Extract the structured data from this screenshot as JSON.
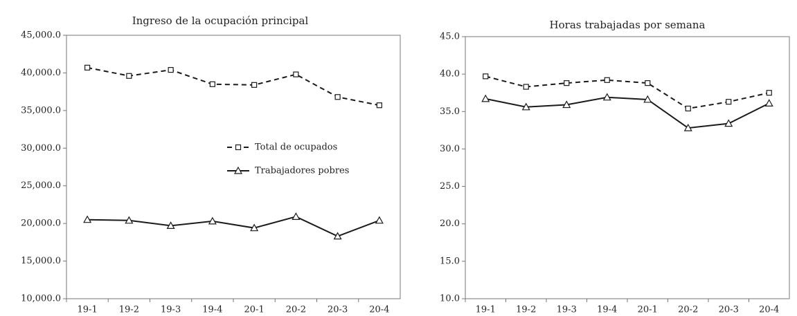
{
  "chart_data": [
    {
      "type": "line",
      "title": "Ingreso de la ocupación principal",
      "categories": [
        "19-1",
        "19-2",
        "19-3",
        "19-4",
        "20-1",
        "20-2",
        "20-3",
        "20-4"
      ],
      "series": [
        {
          "name": "Total de ocupados",
          "color": "#1a1a1a",
          "line_style": "dashed",
          "marker": "square",
          "values": [
            40700,
            39600,
            40400,
            38500,
            38400,
            39800,
            36800,
            35700
          ]
        },
        {
          "name": "Trabajadores pobres",
          "color": "#1a1a1a",
          "line_style": "solid",
          "marker": "triangle",
          "values": [
            20500,
            20400,
            19700,
            20300,
            19400,
            20900,
            18300,
            20400
          ]
        }
      ],
      "ylim": [
        10000,
        45000
      ],
      "yticks": [
        {
          "value": 10000,
          "label": "10,000.0"
        },
        {
          "value": 15000,
          "label": "15,000.0"
        },
        {
          "value": 20000,
          "label": "20,000.0"
        },
        {
          "value": 25000,
          "label": "25,000.0"
        },
        {
          "value": 30000,
          "label": "30,000.0"
        },
        {
          "value": 35000,
          "label": "35,000.0"
        },
        {
          "value": 40000,
          "label": "40,000.0"
        },
        {
          "value": 45000,
          "label": "45,000.0"
        }
      ],
      "legend": "center-right"
    },
    {
      "type": "line",
      "title": "Horas trabajadas por semana",
      "categories": [
        "19-1",
        "19-2",
        "19-3",
        "19-4",
        "20-1",
        "20-2",
        "20-3",
        "20-4"
      ],
      "series": [
        {
          "color": "#1a1a1a",
          "line_style": "dashed",
          "marker": "square",
          "values": [
            39.7,
            38.3,
            38.8,
            39.2,
            38.8,
            35.4,
            36.3,
            37.5
          ]
        },
        {
          "color": "#1a1a1a",
          "line_style": "solid",
          "marker": "triangle",
          "values": [
            36.7,
            35.6,
            35.9,
            36.9,
            36.6,
            32.8,
            33.4,
            36.1
          ]
        }
      ],
      "ylim": [
        10,
        45
      ],
      "yticks": [
        {
          "value": 10,
          "label": "10.0"
        },
        {
          "value": 15,
          "label": "15.0"
        },
        {
          "value": 20,
          "label": "20.0"
        },
        {
          "value": 25,
          "label": "25.0"
        },
        {
          "value": 30,
          "label": "30.0"
        },
        {
          "value": 35,
          "label": "35.0"
        },
        {
          "value": 40,
          "label": "40.0"
        },
        {
          "value": 45,
          "label": "45.0"
        }
      ]
    }
  ]
}
